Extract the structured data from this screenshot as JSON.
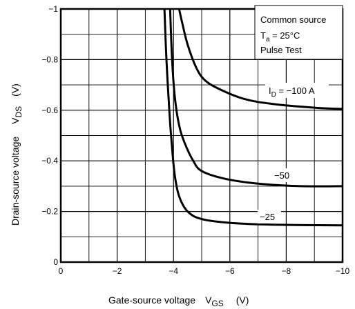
{
  "chart_data": {
    "type": "line",
    "xlabel": {
      "main": "Gate-source voltage",
      "sym": "V",
      "sub": "GS",
      "unit": "(V)"
    },
    "ylabel": {
      "main": "Drain-source voltage",
      "sym": "V",
      "sub": "DS",
      "unit": "(V)"
    },
    "xlim": [
      0,
      -10
    ],
    "ylim": [
      0,
      -1
    ],
    "grid": true,
    "x_ticks": [
      {
        "v": 0,
        "label": "0"
      },
      {
        "v": -2,
        "label": "−2"
      },
      {
        "v": -4,
        "label": "−4"
      },
      {
        "v": -6,
        "label": "−6"
      },
      {
        "v": -8,
        "label": "−8"
      },
      {
        "v": -10,
        "label": "−10"
      }
    ],
    "y_ticks": [
      {
        "v": 0,
        "label": "0"
      },
      {
        "v": -0.2,
        "label": "−0.2"
      },
      {
        "v": -0.4,
        "label": "−0.4"
      },
      {
        "v": -0.6,
        "label": "−0.6"
      },
      {
        "v": -0.8,
        "label": "−0.8"
      },
      {
        "v": -1,
        "label": "−1"
      }
    ],
    "conditions": {
      "line1": "Common source",
      "line2_sym": "T",
      "line2_sub": "a",
      "line2_rest": " = 25°C",
      "line3": "Pulse Test"
    },
    "series": [
      {
        "name": "I_D = −100 A",
        "label_sym": "I",
        "label_sub": "D",
        "label_rest": " = −100 A",
        "x": [
          -4.2,
          -4.3,
          -4.5,
          -4.8,
          -5.1,
          -5.6,
          -6.5,
          -7.5,
          -9.0,
          -10.0
        ],
        "y": [
          -1.0,
          -0.95,
          -0.86,
          -0.77,
          -0.72,
          -0.685,
          -0.645,
          -0.625,
          -0.61,
          -0.605
        ]
      },
      {
        "name": "−50",
        "label_text": "−50",
        "x": [
          -3.88,
          -3.95,
          -4.05,
          -4.2,
          -4.4,
          -4.7,
          -5.0,
          -5.8,
          -7.0,
          -8.5,
          -10.0
        ],
        "y": [
          -1.0,
          -0.8,
          -0.65,
          -0.54,
          -0.47,
          -0.4,
          -0.36,
          -0.33,
          -0.31,
          -0.3,
          -0.3
        ]
      },
      {
        "name": "−25",
        "label_text": "−25",
        "x": [
          -3.68,
          -3.75,
          -3.85,
          -3.95,
          -4.05,
          -4.2,
          -4.5,
          -5.0,
          -6.0,
          -7.5,
          -10.0
        ],
        "y": [
          -1.0,
          -0.8,
          -0.6,
          -0.45,
          -0.34,
          -0.26,
          -0.2,
          -0.17,
          -0.155,
          -0.148,
          -0.145
        ]
      }
    ]
  }
}
